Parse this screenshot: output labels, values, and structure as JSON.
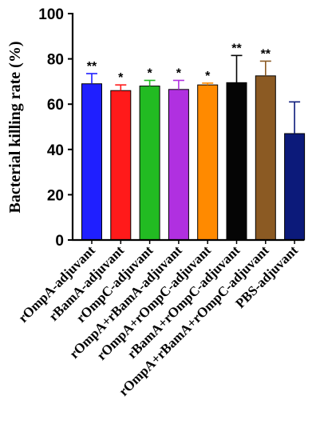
{
  "chart_data": {
    "type": "bar",
    "title": "",
    "xlabel": "",
    "ylabel": "Bacterial killing rate (%)",
    "ylim": [
      0,
      100
    ],
    "yticks": [
      "0",
      "20",
      "40",
      "60",
      "80",
      "100"
    ],
    "grid": false,
    "categories": [
      "rOmpA-adjuvant",
      "rBamA-adjuvant",
      "rOmpC-adjuvant",
      "rOmpA+rBamA-adjuvant",
      "rOmpA+rOmpC-adjuvant",
      "rBamA+rOmpC-adjuvant",
      "rOmpA+rBamA+rOmpC-adjuvant",
      "PBS-adjuvant"
    ],
    "values": [
      69,
      66,
      68,
      66.5,
      68.5,
      69.5,
      72.5,
      47
    ],
    "errors": [
      4.5,
      2.5,
      2.5,
      4,
      0.8,
      12,
      6.5,
      14
    ],
    "significance": [
      "**",
      "*",
      "*",
      "*",
      "*",
      "**",
      "**",
      ""
    ],
    "colors": [
      "#1f1fff",
      "#ff1a1a",
      "#22bb22",
      "#b030e0",
      "#ff8a00",
      "#050505",
      "#8b5a23",
      "#0c1a7a"
    ]
  }
}
